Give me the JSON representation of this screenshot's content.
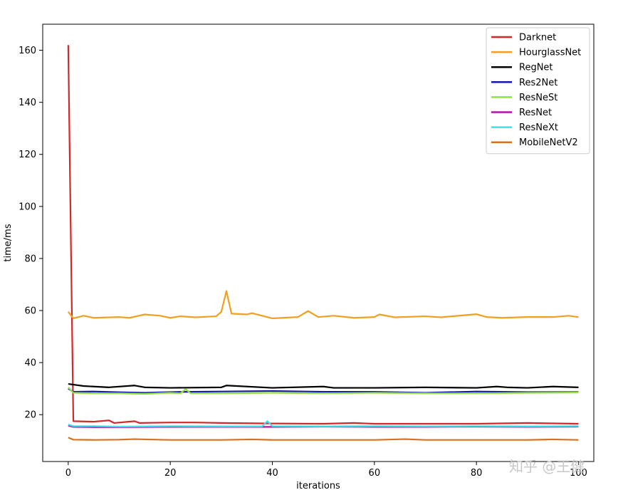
{
  "watermark": "知乎 @王健",
  "chart_data": {
    "type": "line",
    "title": "",
    "xlabel": "iterations",
    "ylabel": "time/ms",
    "xlim": [
      -5,
      103
    ],
    "ylim": [
      2,
      170
    ],
    "xticks": [
      0,
      20,
      40,
      60,
      80,
      100
    ],
    "yticks": [
      20,
      40,
      60,
      80,
      100,
      120,
      140,
      160
    ],
    "grid": false,
    "legend_position": "top-right",
    "series": [
      {
        "name": "Darknet",
        "color": "#d62728",
        "x": [
          0,
          1,
          5,
          8,
          9,
          13,
          14,
          20,
          25,
          30,
          40,
          50,
          56,
          60,
          70,
          80,
          90,
          100
        ],
        "y": [
          162,
          17.5,
          17.3,
          17.8,
          16.8,
          17.5,
          16.8,
          17.0,
          17.0,
          16.8,
          16.6,
          16.5,
          16.8,
          16.5,
          16.5,
          16.5,
          16.8,
          16.5
        ]
      },
      {
        "name": "HourglassNet",
        "color": "#f0a020",
        "x": [
          0,
          1,
          3,
          5,
          10,
          12,
          15,
          18,
          20,
          22,
          25,
          29,
          30,
          31,
          32,
          35,
          36,
          40,
          45,
          47,
          49,
          52,
          56,
          60,
          61,
          64,
          70,
          73,
          80,
          82,
          85,
          90,
          95,
          98,
          100
        ],
        "y": [
          59.5,
          57.0,
          58.0,
          57.2,
          57.5,
          57.2,
          58.5,
          58.0,
          57.2,
          57.8,
          57.4,
          57.8,
          59.5,
          67.5,
          58.8,
          58.5,
          59.0,
          57.0,
          57.5,
          59.8,
          57.5,
          58.0,
          57.2,
          57.5,
          58.5,
          57.4,
          57.8,
          57.4,
          58.6,
          57.5,
          57.2,
          57.5,
          57.5,
          58.0,
          57.5
        ]
      },
      {
        "name": "RegNet",
        "color": "#000000",
        "x": [
          0,
          3,
          8,
          13,
          15,
          20,
          30,
          31,
          40,
          50,
          52,
          60,
          70,
          80,
          84,
          86,
          90,
          95,
          100
        ],
        "y": [
          31.8,
          31.0,
          30.5,
          31.2,
          30.5,
          30.3,
          30.5,
          31.2,
          30.3,
          30.8,
          30.3,
          30.3,
          30.5,
          30.3,
          30.8,
          30.5,
          30.3,
          30.8,
          30.5
        ]
      },
      {
        "name": "Res2Net",
        "color": "#1818a8",
        "x": [
          0,
          1,
          5,
          10,
          15,
          20,
          30,
          40,
          50,
          60,
          70,
          80,
          90,
          100
        ],
        "y": [
          30.0,
          28.8,
          28.9,
          28.6,
          28.4,
          28.7,
          28.9,
          29.1,
          28.8,
          28.8,
          28.4,
          28.9,
          28.7,
          28.7
        ]
      },
      {
        "name": "ResNeSt",
        "color": "#90e040",
        "x": [
          0,
          1,
          5,
          10,
          15,
          20,
          22,
          23,
          24,
          30,
          40,
          50,
          60,
          70,
          80,
          90,
          100
        ],
        "y": [
          30.5,
          28.4,
          28.2,
          28.2,
          28.0,
          28.4,
          28.2,
          29.8,
          28.2,
          28.2,
          28.4,
          28.2,
          28.4,
          28.2,
          28.2,
          28.4,
          28.5
        ]
      },
      {
        "name": "ResNet",
        "color": "#b010b0",
        "x": [
          0,
          1,
          5,
          10,
          20,
          30,
          40,
          50,
          60,
          70,
          80,
          90,
          100
        ],
        "y": [
          15.8,
          15.3,
          15.2,
          15.2,
          15.3,
          15.3,
          15.3,
          15.4,
          15.3,
          15.3,
          15.4,
          15.3,
          15.4
        ]
      },
      {
        "name": "ResNeXt",
        "color": "#40e0e8",
        "x": [
          0,
          1,
          5,
          10,
          20,
          30,
          38,
          39,
          40,
          50,
          60,
          70,
          80,
          90,
          100
        ],
        "y": [
          16.2,
          15.6,
          15.6,
          15.4,
          15.6,
          15.5,
          15.5,
          17.5,
          15.6,
          15.5,
          15.6,
          15.5,
          15.6,
          15.5,
          15.6
        ]
      },
      {
        "name": "MobileNetV2",
        "color": "#d87020",
        "x": [
          0,
          1,
          5,
          10,
          13,
          15,
          20,
          30,
          36,
          40,
          50,
          60,
          66,
          70,
          80,
          90,
          95,
          100
        ],
        "y": [
          11.2,
          10.4,
          10.3,
          10.4,
          10.6,
          10.5,
          10.3,
          10.3,
          10.5,
          10.3,
          10.3,
          10.3,
          10.6,
          10.3,
          10.3,
          10.3,
          10.5,
          10.3
        ]
      }
    ]
  }
}
